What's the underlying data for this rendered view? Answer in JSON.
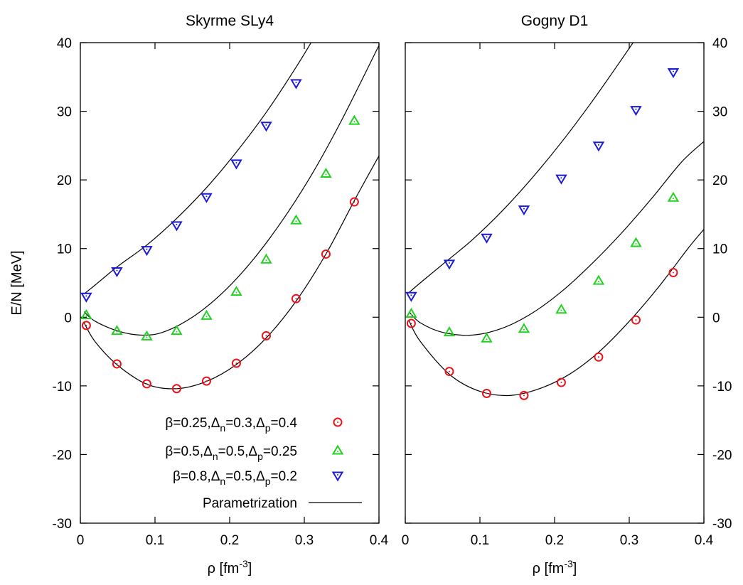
{
  "legend": {
    "entries": [
      {
        "text_parts": [
          "β=0.25,Δ",
          "n",
          "=0.3,Δ",
          "p",
          "=0.4"
        ],
        "marker": "circle",
        "color": "#e8141c"
      },
      {
        "text_parts": [
          "β=0.5,Δ",
          "n",
          "=0.5,Δ",
          "p",
          "=0.25"
        ],
        "marker": "triangle-up",
        "color": "#22d022"
      },
      {
        "text_parts": [
          "β=0.8,Δ",
          "n",
          "=0.5,Δ",
          "p",
          "=0.2"
        ],
        "marker": "triangle-down",
        "color": "#1a1ad8"
      },
      {
        "text_parts": [
          "Parametrization"
        ],
        "marker": "line",
        "color": "#000000"
      }
    ]
  },
  "chart_data": [
    {
      "type": "scatter",
      "title": "Skyrme SLy4",
      "xlabel_parts": [
        "ρ [fm",
        "-3",
        "]"
      ],
      "ylabel": "E/N [MeV]",
      "xlim": [
        0,
        0.4
      ],
      "ylim": [
        -30,
        40
      ],
      "x_ticks": [
        "0",
        "0.1",
        "0.2",
        "0.3",
        "0.4"
      ],
      "y_ticks": [
        "-30",
        "-20",
        "-10",
        "0",
        "10",
        "20",
        "30",
        "40"
      ],
      "grid": false,
      "legend_position": "bottom-right",
      "series": [
        {
          "name": "β=0.25,Δn=0.3,Δp=0.4",
          "marker": "circle",
          "color": "#e8141c",
          "x": [
            0.008,
            0.049,
            0.089,
            0.129,
            0.169,
            0.209,
            0.249,
            0.289,
            0.329,
            0.367
          ],
          "y": [
            -1.2,
            -6.8,
            -9.7,
            -10.4,
            -9.3,
            -6.7,
            -2.7,
            2.7,
            9.2,
            16.8
          ]
        },
        {
          "name": "β=0.5,Δn=0.5,Δp=0.25",
          "marker": "triangle-up",
          "color": "#22d022",
          "x": [
            0.008,
            0.049,
            0.089,
            0.129,
            0.169,
            0.209,
            0.249,
            0.289,
            0.329,
            0.367
          ],
          "y": [
            0.3,
            -2.0,
            -2.8,
            -2.0,
            0.2,
            3.7,
            8.4,
            14.1,
            20.9,
            28.6
          ]
        },
        {
          "name": "β=0.8,Δn=0.5,Δp=0.2",
          "marker": "triangle-down",
          "color": "#1a1ad8",
          "x": [
            0.008,
            0.049,
            0.089,
            0.129,
            0.169,
            0.209,
            0.249,
            0.289
          ],
          "y": [
            3.0,
            6.7,
            9.8,
            13.4,
            17.5,
            22.4,
            27.9,
            34.1
          ]
        }
      ],
      "fit_curves": [
        {
          "name": "Parametrization",
          "color": "#000000",
          "x": [
            0.005,
            0.02,
            0.05,
            0.09,
            0.13,
            0.17,
            0.21,
            0.25,
            0.29,
            0.33,
            0.37,
            0.4
          ],
          "y": [
            -0.8,
            -3.6,
            -7.0,
            -9.8,
            -10.4,
            -9.3,
            -6.8,
            -2.9,
            2.5,
            9.4,
            17.6,
            23.5
          ]
        },
        {
          "name": "Parametrization",
          "color": "#000000",
          "x": [
            0.005,
            0.02,
            0.05,
            0.08,
            0.11,
            0.15,
            0.19,
            0.23,
            0.27,
            0.31,
            0.35,
            0.4
          ],
          "y": [
            0.8,
            -0.6,
            -2.0,
            -2.6,
            -2.2,
            0.0,
            3.5,
            8.2,
            14.0,
            20.8,
            28.7,
            39.6
          ]
        },
        {
          "name": "Parametrization",
          "color": "#000000",
          "x": [
            0.005,
            0.02,
            0.05,
            0.09,
            0.13,
            0.17,
            0.21,
            0.25,
            0.29,
            0.32
          ],
          "y": [
            3.4,
            4.7,
            7.4,
            10.6,
            14.5,
            19.0,
            24.2,
            30.0,
            36.6,
            42.0
          ]
        }
      ]
    },
    {
      "type": "scatter",
      "title": "Gogny D1",
      "xlabel_parts": [
        "ρ [fm",
        "-3",
        "]"
      ],
      "ylabel": "",
      "xlim": [
        0,
        0.4
      ],
      "ylim": [
        -30,
        40
      ],
      "x_ticks": [
        "0",
        "0.1",
        "0.2",
        "0.3",
        "0.4"
      ],
      "y_ticks": [
        "-30",
        "-20",
        "-10",
        "0",
        "10",
        "20",
        "30",
        "40"
      ],
      "grid": false,
      "series": [
        {
          "name": "β=0.25,Δn=0.3,Δp=0.4",
          "marker": "circle",
          "color": "#e8141c",
          "x": [
            0.008,
            0.059,
            0.109,
            0.159,
            0.209,
            0.259,
            0.309,
            0.359
          ],
          "y": [
            -0.9,
            -7.9,
            -11.1,
            -11.4,
            -9.5,
            -5.8,
            -0.4,
            6.5
          ]
        },
        {
          "name": "β=0.5,Δn=0.5,Δp=0.25",
          "marker": "triangle-up",
          "color": "#22d022",
          "x": [
            0.008,
            0.059,
            0.109,
            0.159,
            0.209,
            0.259,
            0.309,
            0.359
          ],
          "y": [
            0.5,
            -2.2,
            -3.1,
            -1.7,
            1.1,
            5.3,
            10.8,
            17.4
          ]
        },
        {
          "name": "β=0.8,Δn=0.5,Δp=0.2",
          "marker": "triangle-down",
          "color": "#1a1ad8",
          "x": [
            0.008,
            0.059,
            0.109,
            0.159,
            0.209,
            0.259,
            0.309,
            0.359
          ],
          "y": [
            3.1,
            7.8,
            11.6,
            15.7,
            20.2,
            25.0,
            30.2,
            35.7
          ]
        }
      ],
      "fit_curves": [
        {
          "name": "Parametrization",
          "color": "#000000",
          "x": [
            0.005,
            0.02,
            0.06,
            0.1,
            0.14,
            0.18,
            0.22,
            0.26,
            0.3,
            0.34,
            0.38,
            0.4
          ],
          "y": [
            -0.5,
            -3.5,
            -8.4,
            -10.8,
            -11.4,
            -10.4,
            -8.3,
            -5.0,
            -0.6,
            4.5,
            10.2,
            12.8
          ]
        },
        {
          "name": "Parametrization",
          "color": "#000000",
          "x": [
            0.005,
            0.02,
            0.05,
            0.09,
            0.13,
            0.17,
            0.21,
            0.25,
            0.29,
            0.33,
            0.37,
            0.4
          ],
          "y": [
            0.8,
            -0.8,
            -2.2,
            -2.6,
            -1.6,
            0.6,
            3.8,
            7.8,
            12.3,
            17.3,
            22.6,
            25.6
          ]
        },
        {
          "name": "Parametrization",
          "color": "#000000",
          "x": [
            0.005,
            0.02,
            0.05,
            0.09,
            0.13,
            0.17,
            0.21,
            0.25,
            0.29,
            0.33
          ],
          "y": [
            3.6,
            5.0,
            7.7,
            11.3,
            15.5,
            20.3,
            25.6,
            31.4,
            37.6,
            44.0
          ]
        }
      ]
    }
  ]
}
